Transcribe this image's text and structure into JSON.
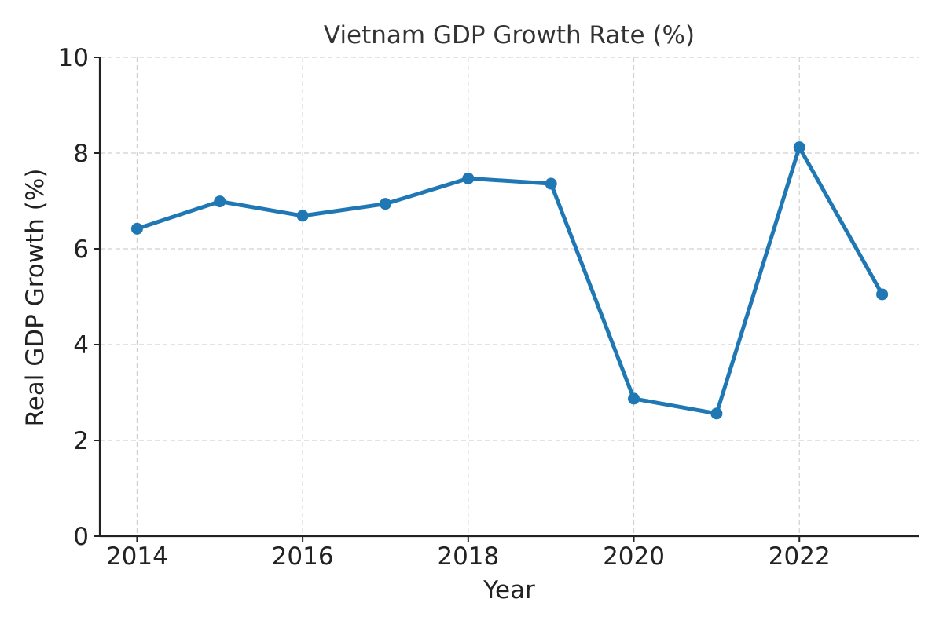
{
  "chart_data": {
    "type": "line",
    "title": "Vietnam GDP Growth Rate (%)",
    "xlabel": "Year",
    "ylabel": "Real GDP Growth (%)",
    "x": [
      2014,
      2015,
      2016,
      2017,
      2018,
      2019,
      2020,
      2021,
      2022,
      2023
    ],
    "series": [
      {
        "name": "Real GDP Growth",
        "color": "#1f77b4",
        "values": [
          6.42,
          6.99,
          6.69,
          6.94,
          7.47,
          7.36,
          2.87,
          2.56,
          8.12,
          5.05
        ]
      }
    ],
    "xlim": [
      2013.55,
      2023.45
    ],
    "ylim": [
      0,
      10
    ],
    "x_ticks": [
      "2014",
      "2016",
      "2018",
      "2020",
      "2022"
    ],
    "y_ticks": [
      "0",
      "2",
      "4",
      "6",
      "8",
      "10"
    ],
    "grid": true,
    "legend": "none"
  }
}
